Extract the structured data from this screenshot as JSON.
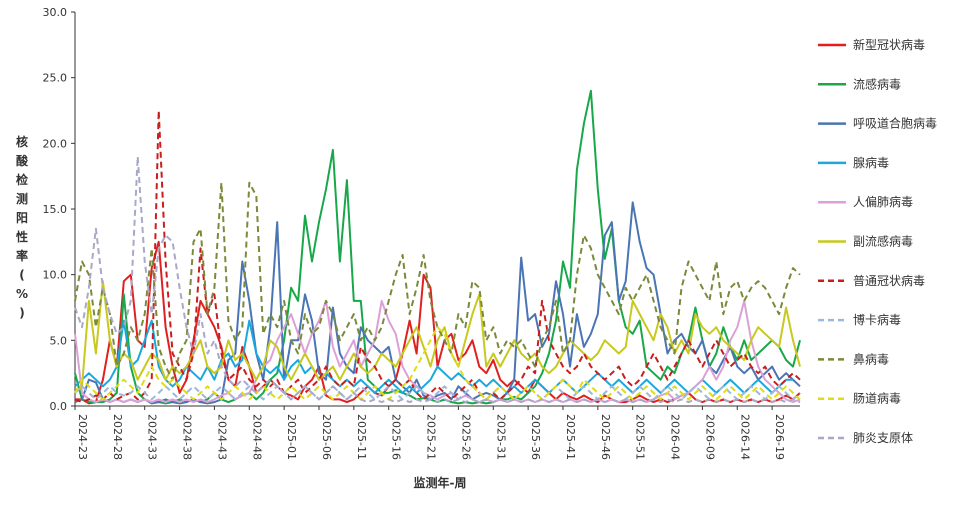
{
  "chart_data": {
    "type": "line",
    "xlabel": "监测年-周",
    "ylabel": "核酸检测阳性率(%)",
    "ylim": [
      0,
      30
    ],
    "yticks": [
      "0.0",
      "5.0",
      "10.0",
      "15.0",
      "20.0",
      "25.0",
      "30.0"
    ],
    "x_tick_labels": [
      "2024-23",
      "2024-28",
      "2024-33",
      "2024-38",
      "2024-43",
      "2024-48",
      "2025-01",
      "2025-06",
      "2025-11",
      "2025-16",
      "2025-21",
      "2025-26",
      "2025-31",
      "2025-36",
      "2025-41",
      "2025-46",
      "2025-51",
      "2026-04",
      "2026-09",
      "2026-14",
      "2026-19"
    ],
    "n_weeks": 105,
    "legend_position": "right",
    "series": [
      {
        "name": "新型冠状病毒",
        "color": "#e02020",
        "dash": false,
        "values": [
          0.5,
          0.5,
          0.2,
          0.3,
          2,
          5,
          3,
          9.5,
          10,
          5,
          4.5,
          10.5,
          12.5,
          6,
          3,
          1,
          2,
          5,
          8,
          7,
          6,
          4.5,
          2,
          1.5,
          4.5,
          3,
          1,
          1.5,
          2,
          1.5,
          1,
          0.8,
          0.5,
          1.5,
          2,
          3,
          0.8,
          0.5,
          0.5,
          0.3,
          0.5,
          1,
          1.5,
          1,
          0.8,
          1.5,
          2,
          4,
          6.5,
          4,
          10,
          9,
          3,
          5,
          5.5,
          3.5,
          4,
          5,
          3,
          2.5,
          3.5,
          2,
          1.5,
          2,
          1.5,
          1,
          2,
          1.5,
          1,
          0.5,
          1,
          0.7,
          0.5,
          0.8,
          0.5,
          0.3,
          0.8,
          0.5,
          0.3,
          0.3,
          0.5,
          0.8,
          0.5,
          0.3,
          0.5,
          0.3,
          0.5,
          0.8,
          1,
          0.5,
          0.3,
          0.5,
          0.3,
          0.5,
          0.3,
          0.5,
          0.3,
          0.5,
          0.3,
          0.5,
          0.3,
          0.5,
          0.8,
          0.5,
          1
        ]
      },
      {
        "name": "流感病毒",
        "color": "#18a84a",
        "dash": false,
        "values": [
          2.5,
          0.5,
          0.3,
          0.3,
          0.3,
          0.5,
          1,
          8.5,
          3,
          1,
          0.5,
          0.3,
          0.3,
          0.2,
          0.3,
          0.5,
          0.3,
          0.5,
          0.3,
          0.5,
          1,
          0.5,
          0.3,
          0.5,
          0.8,
          1,
          0.5,
          1,
          2,
          2.5,
          5,
          9,
          8,
          14.5,
          11,
          14,
          16.5,
          19.5,
          11,
          17.2,
          8,
          8,
          2,
          1.5,
          1,
          1,
          1.2,
          1,
          0.8,
          0.5,
          0.6,
          0.5,
          0.3,
          0.5,
          0.3,
          0.2,
          0.3,
          0.2,
          0.3,
          0.2,
          0.3,
          0.5,
          0.5,
          0.7,
          0.5,
          1,
          1.5,
          2.5,
          4,
          6.5,
          11,
          9,
          18,
          21.5,
          24,
          16.5,
          11.2,
          13.5,
          8,
          6,
          5.5,
          6.5,
          3,
          2.5,
          2,
          3,
          2.5,
          4,
          5,
          7.5,
          5,
          3,
          4,
          6,
          4.5,
          3.5,
          5,
          3.5,
          4,
          4.5,
          5,
          4.5,
          3.5,
          3,
          5
        ]
      },
      {
        "name": "呼吸道合胞病毒",
        "color": "#4a74b4",
        "dash": false,
        "values": [
          0.3,
          0.5,
          2,
          1.8,
          0.5,
          0.3,
          0.5,
          0.3,
          0.5,
          0.3,
          0.5,
          0.2,
          0.3,
          0.5,
          0.3,
          0.2,
          0.3,
          0.5,
          0.3,
          0.2,
          0.3,
          0.5,
          3.5,
          4,
          11,
          8,
          4,
          2,
          6,
          14,
          2,
          5,
          5,
          8.5,
          6.5,
          2.5,
          2,
          7.5,
          4,
          3,
          2.5,
          6,
          5,
          4.5,
          4,
          4.5,
          2,
          1.5,
          1,
          2,
          0.8,
          0.5,
          0.8,
          1,
          0.5,
          1.5,
          1,
          0.5,
          0.8,
          1,
          0.8,
          0.5,
          1,
          2,
          11.3,
          6.5,
          7,
          4.5,
          5.5,
          9.5,
          7,
          3,
          7,
          4.5,
          5.5,
          7,
          13,
          14,
          8,
          9.5,
          15.5,
          12.5,
          10.5,
          10,
          7,
          4,
          5,
          5.5,
          4.5,
          4,
          5,
          3,
          2.5,
          3.5,
          4.5,
          3,
          2.5,
          3,
          2,
          2.5,
          3,
          2,
          2.5,
          2,
          1.5
        ]
      },
      {
        "name": "腺病毒",
        "color": "#1aa7e0",
        "dash": false,
        "values": [
          1.5,
          2,
          2.5,
          2,
          1.5,
          2,
          3,
          6.5,
          3,
          3.5,
          5,
          6.5,
          3,
          2,
          1.5,
          2,
          3,
          2.5,
          2,
          3,
          2,
          3.5,
          4,
          3,
          3.5,
          6.5,
          4,
          3,
          2.5,
          3,
          2,
          3,
          3.5,
          2.5,
          3,
          2,
          2.5,
          2,
          1.5,
          2,
          1.5,
          2,
          1.5,
          1,
          1.5,
          2,
          1.5,
          1,
          1.5,
          1,
          1.5,
          2,
          3,
          2.5,
          2,
          2.5,
          2,
          1.5,
          2,
          1.5,
          2,
          1.5,
          1,
          1.5,
          1,
          1.5,
          2,
          1.5,
          1,
          1.5,
          2,
          1.5,
          1,
          1.5,
          2,
          2.5,
          2,
          1.5,
          2,
          1.5,
          1,
          1.5,
          2,
          1.5,
          1,
          1.5,
          2,
          1.5,
          1,
          1.5,
          2,
          1.5,
          1,
          1.5,
          2,
          1.5,
          1,
          1.5,
          2,
          1.5,
          1,
          1.5,
          2,
          2
        ]
      },
      {
        "name": "人偏肺病毒",
        "color": "#dca0d8",
        "dash": false,
        "values": [
          5.5,
          1,
          0.5,
          0.3,
          0.5,
          0.3,
          0.5,
          0.3,
          0.5,
          0.3,
          0.5,
          0.3,
          0.5,
          0.3,
          0.5,
          0.3,
          0.5,
          0.3,
          0.5,
          0.3,
          0.5,
          0.8,
          1,
          0.5,
          0.8,
          1,
          2,
          3,
          3.5,
          5,
          6,
          7,
          5.5,
          4,
          5.5,
          6.5,
          8,
          4.5,
          3,
          4,
          5,
          3,
          4,
          5,
          8,
          6.5,
          5.5,
          3,
          2,
          1.5,
          1,
          0.8,
          0.5,
          0.8,
          1,
          0.5,
          0.8,
          0.5,
          0.3,
          0.5,
          0.3,
          0.5,
          0.3,
          0.5,
          0.3,
          0.5,
          0.3,
          0.5,
          0.3,
          0.5,
          0.3,
          0.5,
          0.3,
          0.5,
          0.3,
          0.5,
          0.3,
          0.5,
          0.3,
          0.5,
          0.3,
          0.5,
          0.3,
          0.5,
          0.8,
          1,
          0.5,
          0.8,
          1,
          1.5,
          2,
          3,
          2,
          3,
          5,
          6,
          8,
          5,
          3,
          2,
          1.5,
          1,
          0.5,
          0.3,
          0.5
        ]
      },
      {
        "name": "副流感病毒",
        "color": "#c8c81e",
        "dash": false,
        "values": [
          1,
          1.5,
          8,
          4,
          9.5,
          5,
          3,
          4,
          3.5,
          2,
          3,
          4,
          3.5,
          2,
          3,
          2.5,
          3,
          4,
          5,
          3,
          2.5,
          3,
          5,
          3.5,
          4,
          3,
          2,
          3,
          5,
          4.5,
          3,
          2,
          3,
          4,
          3,
          2,
          2.5,
          3,
          2,
          3,
          4,
          3,
          2.5,
          3,
          4,
          3.5,
          3,
          4,
          5,
          6,
          4.5,
          3,
          5,
          6,
          4,
          3,
          5,
          7,
          8.5,
          3,
          4,
          3,
          4,
          5,
          4,
          3.5,
          4,
          3,
          2.5,
          3,
          4,
          5,
          4.5,
          4,
          3.5,
          4,
          5,
          4.5,
          4,
          4.5,
          8,
          7,
          6,
          5,
          7,
          6,
          4,
          5,
          4,
          7,
          6,
          5.5,
          6,
          5,
          4.5,
          4,
          3.5,
          5,
          6,
          5.5,
          5,
          4.5,
          7.5,
          5,
          3
        ]
      },
      {
        "name": "普通冠状病毒",
        "color": "#c81e1e",
        "dash": true,
        "values": [
          0.5,
          0.3,
          0.5,
          0.8,
          0.5,
          1,
          0.5,
          0.8,
          1,
          0.5,
          1,
          2,
          22.5,
          11,
          4,
          3,
          2,
          4,
          12,
          7,
          8.5,
          4,
          2,
          2.5,
          3,
          2,
          1.5,
          2,
          1.5,
          2,
          1,
          1.5,
          2,
          1,
          1.5,
          2,
          3,
          2,
          1.5,
          2,
          1.5,
          4.5,
          3.5,
          3,
          2,
          1.5,
          2,
          1.5,
          2,
          1,
          0.5,
          1,
          1.5,
          1,
          0.5,
          1,
          1.5,
          2,
          1,
          0.5,
          1,
          0.5,
          1,
          1.5,
          2,
          3,
          2.5,
          8,
          5,
          4,
          3,
          2.5,
          3,
          4,
          3,
          2.5,
          2,
          2.5,
          3,
          2,
          1.5,
          2,
          3,
          4,
          3,
          2,
          3,
          4,
          5,
          4,
          3,
          4,
          5,
          4,
          3,
          3.5,
          4,
          3,
          2.5,
          3,
          2,
          1.5,
          2,
          2.5,
          2
        ]
      },
      {
        "name": "博卡病毒",
        "color": "#9cb8dc",
        "dash": true,
        "values": [
          1,
          1.5,
          1,
          0.5,
          1,
          1.5,
          1,
          0.8,
          1,
          1.5,
          1,
          0.5,
          1,
          1.5,
          1,
          0.5,
          1,
          1.5,
          1,
          0.5,
          1,
          1.5,
          1,
          0.5,
          1,
          1.5,
          1,
          0.5,
          1,
          1.5,
          1,
          0.5,
          1,
          1.5,
          1,
          0.5,
          1,
          1.5,
          1,
          0.5,
          1,
          1.5,
          1,
          0.5,
          1,
          1.5,
          1,
          0.5,
          1,
          1.5,
          1,
          0.5,
          1,
          1.5,
          1,
          0.5,
          1,
          1.5,
          1,
          0.5,
          1,
          1.5,
          1,
          0.5,
          1,
          1.5,
          1,
          0.5,
          1,
          1.5,
          1,
          0.5,
          1,
          1.5,
          1,
          0.5,
          1,
          1.5,
          1,
          0.5,
          1,
          1.5,
          1,
          0.5,
          1,
          1.5,
          1,
          0.5,
          1,
          1.5,
          1,
          0.5,
          1,
          1.5,
          1,
          0.5,
          1,
          1.5,
          1,
          0.5,
          1,
          1.5,
          1,
          0.5,
          1
        ]
      },
      {
        "name": "鼻病毒",
        "color": "#7a8a3a",
        "dash": true,
        "values": [
          8,
          11,
          10,
          6,
          9,
          7,
          3,
          4,
          6,
          5,
          7,
          12,
          4.5,
          3,
          2,
          4,
          5,
          12.5,
          13.5,
          7,
          9,
          17,
          6.5,
          5,
          6,
          17,
          16,
          5.5,
          7,
          6,
          8,
          5,
          4,
          7,
          5.5,
          6,
          8,
          7,
          5,
          6,
          7,
          5,
          6,
          5,
          6,
          8,
          10,
          11.5,
          7,
          9,
          11.5,
          8,
          6,
          5,
          4,
          7,
          6,
          9.5,
          9,
          5,
          6,
          4,
          5,
          4.5,
          5,
          4,
          3,
          5,
          6,
          8,
          4,
          5,
          10,
          13,
          12,
          10,
          9,
          8,
          7,
          9,
          8,
          9,
          10,
          8,
          6,
          5,
          4,
          9,
          11,
          10,
          9,
          8,
          11,
          7,
          9,
          9.5,
          8,
          9,
          9.5,
          9,
          8,
          7,
          9,
          10.5,
          10
        ]
      },
      {
        "name": "肠道病毒",
        "color": "#e0dc14",
        "dash": true,
        "values": [
          1,
          2,
          1.5,
          1,
          0.5,
          1,
          1.5,
          2,
          1.5,
          1,
          2,
          3,
          2,
          1.5,
          2,
          1.5,
          1,
          0.5,
          1,
          1.5,
          1,
          0.5,
          1,
          1.5,
          1,
          0.5,
          1,
          1.5,
          1,
          0.5,
          1,
          1.5,
          1,
          0.5,
          1,
          1.5,
          1,
          0.5,
          1,
          1.5,
          1,
          0.5,
          1,
          1.5,
          1,
          0.5,
          1,
          1.5,
          2,
          3,
          4,
          5,
          6,
          5.5,
          4,
          3,
          2,
          1.5,
          1,
          0.5,
          1,
          1.5,
          1,
          0.5,
          1,
          1.5,
          1,
          0.5,
          1,
          1.5,
          2,
          1.5,
          1,
          2,
          1.5,
          1,
          0.5,
          1,
          1.5,
          1,
          0.5,
          1,
          1.5,
          1,
          0.5,
          1,
          1.5,
          1,
          0.5,
          1,
          1.5,
          1,
          0.5,
          1,
          1.5,
          1,
          0.5,
          1,
          1.5,
          1,
          0.5,
          1,
          1.5,
          1,
          0.5
        ]
      },
      {
        "name": "肺炎支原体",
        "color": "#a8a8c8",
        "dash": true,
        "values": [
          7.5,
          6,
          9,
          13.5,
          9,
          7,
          5.5,
          6,
          8,
          19,
          11,
          7,
          12,
          13,
          12.5,
          9,
          6,
          4,
          7,
          4,
          5,
          3,
          2,
          1.5,
          2,
          1.5,
          1,
          1.5,
          2,
          1.5,
          1,
          0.5,
          1,
          1.5,
          1,
          0.5,
          1,
          1.5,
          1,
          0.5,
          1,
          0.5,
          0.3,
          0.5,
          0.3,
          0.5,
          0.3,
          0.5,
          0.3,
          0.5,
          0.3,
          0.5,
          0.3,
          0.5,
          0.3,
          0.5,
          0.3,
          0.5,
          0.3,
          0.5,
          0.3,
          0.5,
          0.3,
          0.5,
          0.3,
          0.5,
          0.3,
          0.5,
          0.3,
          0.5,
          0.3,
          0.5,
          0.3,
          0.5,
          0.3,
          0.5,
          0.3,
          0.5,
          0.3,
          0.5,
          0.3,
          0.5,
          0.3,
          0.5,
          0.3,
          0.5,
          0.3,
          0.5,
          0.3,
          0.5,
          0.3,
          0.5,
          0.3,
          0.5,
          0.3,
          0.5,
          0.3,
          0.5,
          0.3,
          0.5,
          0.3,
          0.5,
          0.3,
          0.5,
          0.3
        ]
      }
    ]
  }
}
